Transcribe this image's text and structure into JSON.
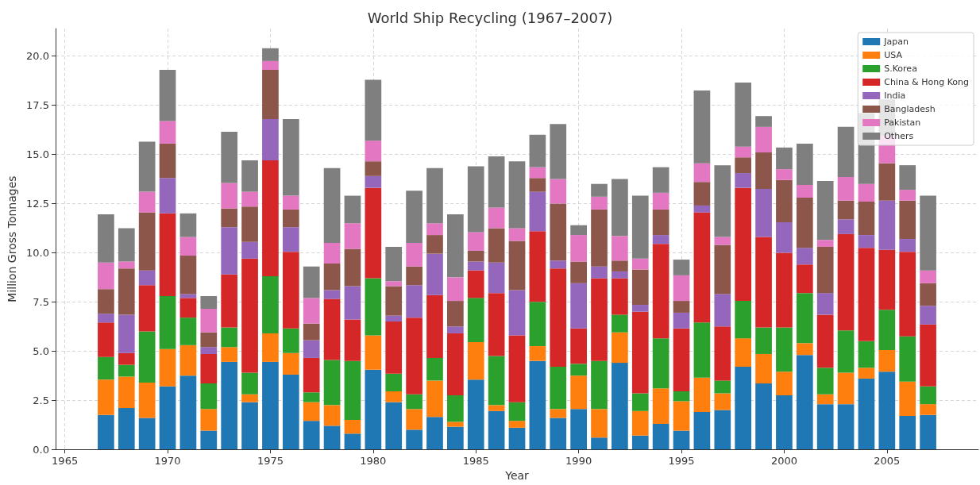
{
  "chart_data": {
    "type": "bar",
    "title": "World Ship Recycling (1967–2007)",
    "xlabel": "Year",
    "ylabel": "Million Gross Tonnages",
    "x": [
      1967,
      1968,
      1969,
      1970,
      1971,
      1972,
      1973,
      1974,
      1975,
      1976,
      1977,
      1978,
      1979,
      1980,
      1981,
      1982,
      1983,
      1984,
      1985,
      1986,
      1987,
      1988,
      1989,
      1990,
      1991,
      1992,
      1993,
      1994,
      1995,
      1996,
      1997,
      1998,
      1999,
      2000,
      2001,
      2002,
      2003,
      2004,
      2005,
      2006,
      2007
    ],
    "stacked": true,
    "grid": true,
    "legend": "top right",
    "xlim": [
      1964.55,
      2009.45
    ],
    "xticks": [
      1965,
      1970,
      1975,
      1980,
      1985,
      1990,
      1995,
      2000,
      2005
    ],
    "ylim": [
      0,
      21.4
    ],
    "yticks": [
      {
        "value": 0,
        "label": "0.0"
      },
      {
        "value": 2.5,
        "label": "2.5"
      },
      {
        "value": 5,
        "label": "5.0"
      },
      {
        "value": 7.5,
        "label": "7.5"
      },
      {
        "value": 10,
        "label": "10.0"
      },
      {
        "value": 12.5,
        "label": "12.5"
      },
      {
        "value": 15,
        "label": "15.0"
      },
      {
        "value": 17.5,
        "label": "17.5"
      },
      {
        "value": 20,
        "label": "20.0"
      }
    ],
    "series": [
      {
        "name": "Japan",
        "color": "#1f77b4",
        "values": [
          1.75,
          2.1,
          1.6,
          3.2,
          3.75,
          0.95,
          4.45,
          2.4,
          4.45,
          3.8,
          1.45,
          1.2,
          0.8,
          4.05,
          2.4,
          1.0,
          1.65,
          1.15,
          3.55,
          1.95,
          1.1,
          4.5,
          1.6,
          2.05,
          0.6,
          4.4,
          0.7,
          1.3,
          0.95,
          1.9,
          2.0,
          4.2,
          3.35,
          2.75,
          4.8,
          2.3,
          2.3,
          3.6,
          3.95,
          1.7,
          1.75
        ]
      },
      {
        "name": "USA",
        "color": "#ff7f0e",
        "values": [
          1.8,
          1.6,
          1.8,
          1.9,
          1.55,
          1.1,
          0.75,
          0.4,
          1.45,
          1.1,
          0.95,
          1.05,
          0.7,
          1.75,
          0.55,
          1.05,
          1.85,
          0.25,
          1.9,
          0.3,
          0.35,
          0.75,
          0.45,
          1.7,
          1.45,
          1.55,
          1.25,
          1.8,
          1.5,
          1.75,
          0.85,
          1.45,
          1.5,
          1.2,
          0.6,
          0.5,
          1.6,
          0.55,
          1.1,
          1.75,
          0.55
        ]
      },
      {
        "name": "S.Korea",
        "color": "#2ca02c",
        "values": [
          1.15,
          0.6,
          2.6,
          2.7,
          1.4,
          1.3,
          1.0,
          1.1,
          2.9,
          1.25,
          0.5,
          2.3,
          3.0,
          2.9,
          0.9,
          0.75,
          1.15,
          1.35,
          2.25,
          2.5,
          0.95,
          2.25,
          2.15,
          0.6,
          2.45,
          0.9,
          0.9,
          2.55,
          0.5,
          2.8,
          0.65,
          1.9,
          1.35,
          2.25,
          2.55,
          1.35,
          2.15,
          1.35,
          2.05,
          2.3,
          0.9
        ]
      },
      {
        "name": "China & Hong Kong",
        "color": "#d62728",
        "values": [
          1.75,
          0.6,
          2.35,
          4.2,
          1.0,
          1.5,
          2.7,
          5.8,
          5.9,
          3.9,
          1.75,
          3.1,
          2.1,
          4.6,
          2.65,
          3.9,
          3.2,
          3.15,
          1.4,
          3.2,
          3.4,
          3.6,
          5.0,
          1.8,
          4.2,
          1.85,
          4.15,
          4.8,
          3.2,
          5.6,
          2.75,
          5.75,
          4.6,
          3.8,
          1.45,
          2.7,
          4.9,
          4.75,
          3.05,
          4.3,
          3.15
        ]
      },
      {
        "name": "India",
        "color": "#9467bd",
        "values": [
          0.45,
          1.95,
          0.75,
          1.8,
          0.2,
          0.35,
          2.4,
          0.85,
          2.1,
          1.25,
          0.9,
          0.45,
          1.7,
          0.6,
          0.3,
          1.65,
          2.1,
          0.35,
          0.45,
          1.55,
          2.3,
          2.0,
          0.4,
          2.3,
          0.6,
          0.35,
          0.35,
          0.45,
          0.8,
          0.35,
          1.65,
          0.75,
          2.45,
          1.55,
          0.85,
          1.1,
          0.75,
          0.65,
          2.5,
          0.65,
          0.95
        ]
      },
      {
        "name": "Bangladesh",
        "color": "#8c564b",
        "values": [
          1.25,
          2.35,
          2.95,
          1.75,
          1.95,
          0.75,
          0.95,
          1.8,
          2.5,
          0.9,
          0.85,
          1.35,
          1.9,
          0.75,
          1.5,
          0.95,
          0.95,
          1.3,
          0.55,
          1.75,
          2.5,
          0.7,
          2.9,
          1.1,
          2.9,
          0.55,
          1.8,
          1.3,
          0.6,
          1.2,
          2.5,
          0.8,
          1.85,
          2.15,
          2.55,
          2.35,
          0.95,
          1.7,
          1.9,
          1.95,
          1.15
        ]
      },
      {
        "name": "Pakistan",
        "color": "#e377c2",
        "values": [
          1.35,
          0.35,
          1.05,
          1.15,
          0.95,
          1.2,
          1.3,
          0.75,
          0.45,
          0.7,
          1.3,
          1.05,
          1.3,
          1.05,
          0.25,
          1.2,
          0.6,
          1.2,
          0.95,
          1.05,
          0.65,
          0.55,
          1.25,
          1.35,
          0.65,
          1.25,
          0.55,
          0.85,
          1.3,
          0.95,
          0.4,
          0.55,
          1.3,
          0.55,
          0.65,
          0.35,
          1.2,
          0.9,
          1.4,
          0.55,
          0.65
        ]
      },
      {
        "name": "Others",
        "color": "#7f7f7f",
        "values": [
          2.45,
          1.7,
          2.55,
          2.6,
          1.2,
          0.65,
          2.6,
          1.6,
          0.65,
          3.9,
          1.6,
          3.8,
          1.4,
          3.1,
          1.75,
          2.65,
          2.8,
          3.2,
          3.35,
          2.6,
          3.4,
          1.65,
          2.8,
          0.5,
          0.65,
          2.9,
          3.2,
          1.3,
          0.8,
          3.7,
          3.65,
          3.25,
          0.55,
          1.1,
          2.1,
          3.0,
          2.55,
          3.6,
          1.85,
          1.25,
          3.8
        ]
      }
    ]
  }
}
